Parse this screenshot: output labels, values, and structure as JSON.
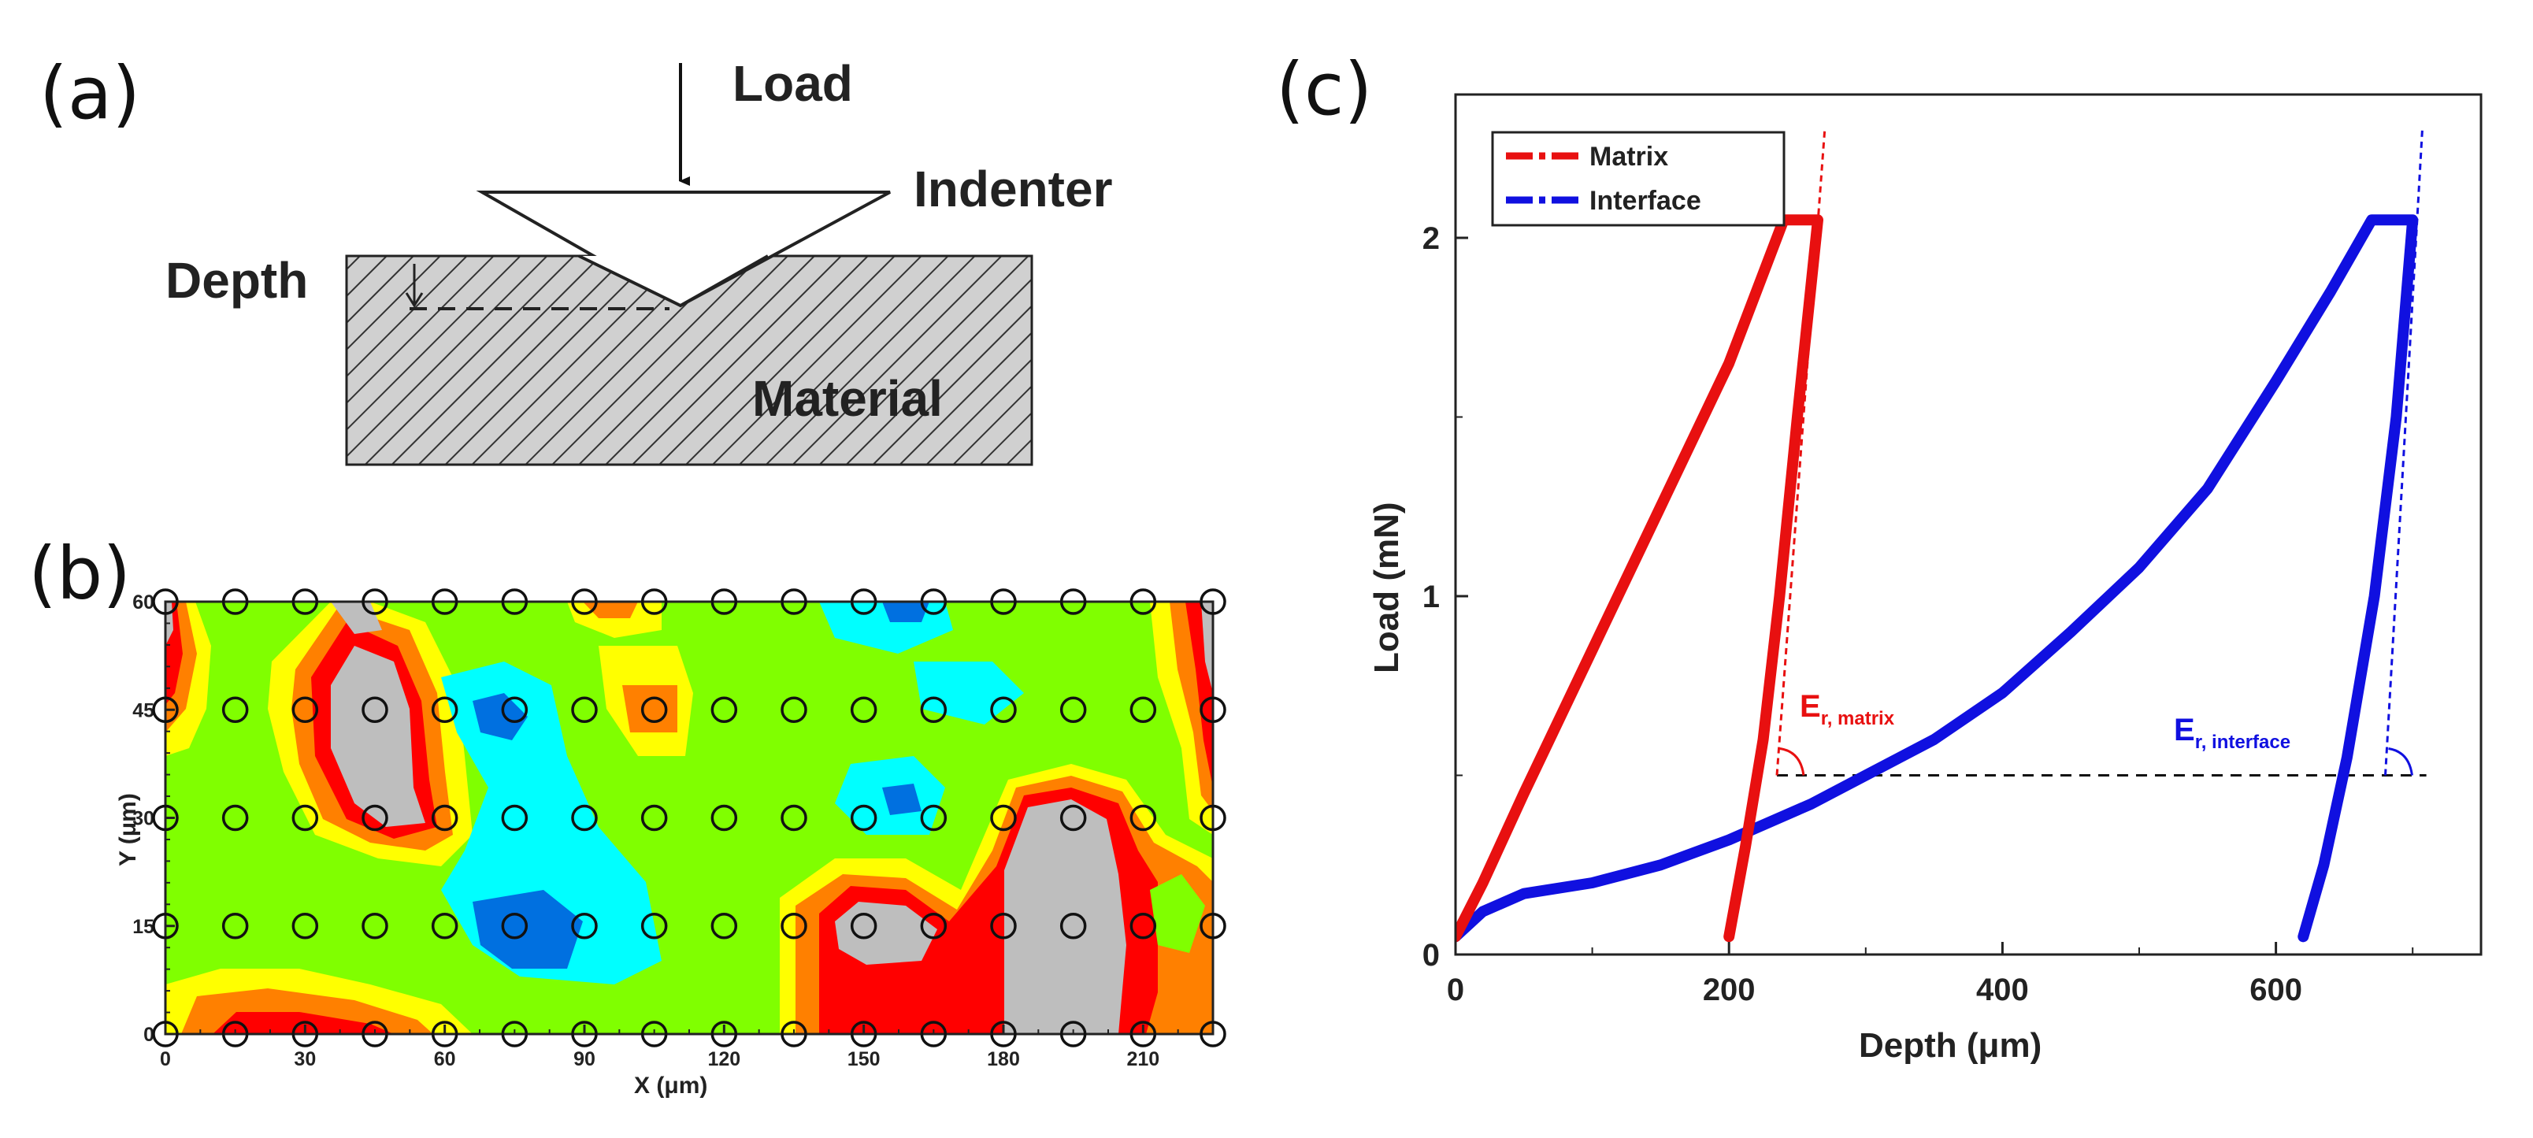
{
  "panels": {
    "a": "(a)",
    "b": "(b)",
    "c": "(c)"
  },
  "diagram": {
    "load": "Load",
    "indenter": "Indenter",
    "depth": "Depth",
    "material": "Material"
  },
  "chart_data": [
    {
      "type": "heatmap",
      "panel": "b",
      "xlabel": "X (μm)",
      "ylabel": "Y (μm)",
      "xlim": [
        0,
        225
      ],
      "ylim": [
        0,
        60
      ],
      "xticks": [
        "0",
        "30",
        "60",
        "90",
        "120",
        "150",
        "180",
        "210"
      ],
      "yticks": [
        "0",
        "15",
        "30",
        "45",
        "60"
      ],
      "grid_x": [
        0,
        15,
        30,
        45,
        60,
        75,
        90,
        105,
        120,
        135,
        150,
        165,
        180,
        195,
        210,
        225
      ],
      "grid_y": [
        0,
        15,
        30,
        45,
        60
      ],
      "colors": {
        "gray": "#bebebe",
        "red": "#ff0000",
        "orange": "#ff8000",
        "yellow": "#ffff00",
        "green": "#80ff00",
        "cyan": "#00ffff",
        "blue": "#0070e0"
      }
    },
    {
      "type": "line",
      "panel": "c",
      "xlabel": "Depth (μm)",
      "ylabel": "Load (mN)",
      "xlim": [
        0,
        750
      ],
      "ylim": [
        0,
        2.4
      ],
      "xticks": [
        {
          "v": 0,
          "t": "0"
        },
        {
          "v": 200,
          "t": "200"
        },
        {
          "v": 400,
          "t": "400"
        },
        {
          "v": 600,
          "t": "600"
        }
      ],
      "yticks": [
        {
          "v": 0,
          "t": "0"
        },
        {
          "v": 1,
          "t": "1"
        },
        {
          "v": 2,
          "t": "2"
        }
      ],
      "legend": [
        "Matrix",
        "Interface"
      ],
      "series": [
        {
          "name": "Matrix",
          "color": "#e81010",
          "loading": [
            [
              0,
              0.05
            ],
            [
              20,
              0.2
            ],
            [
              50,
              0.45
            ],
            [
              100,
              0.85
            ],
            [
              150,
              1.25
            ],
            [
              200,
              1.65
            ],
            [
              240,
              2.05
            ]
          ],
          "hold": [
            [
              240,
              2.05
            ],
            [
              265,
              2.05
            ]
          ],
          "unloading": [
            [
              265,
              2.05
            ],
            [
              250,
              1.5
            ],
            [
              237,
              1.0
            ],
            [
              225,
              0.6
            ],
            [
              212,
              0.3
            ],
            [
              200,
              0.05
            ]
          ],
          "tangent": [
            [
              235,
              0.5
            ],
            [
              270,
              2.3
            ]
          ]
        },
        {
          "name": "Interface",
          "color": "#1010e0",
          "loading": [
            [
              0,
              0.05
            ],
            [
              20,
              0.12
            ],
            [
              50,
              0.17
            ],
            [
              100,
              0.2
            ],
            [
              150,
              0.25
            ],
            [
              200,
              0.32
            ],
            [
              260,
              0.42
            ],
            [
              300,
              0.5
            ],
            [
              350,
              0.6
            ],
            [
              400,
              0.73
            ],
            [
              450,
              0.9
            ],
            [
              500,
              1.08
            ],
            [
              550,
              1.3
            ],
            [
              600,
              1.6
            ],
            [
              640,
              1.85
            ],
            [
              670,
              2.05
            ]
          ],
          "hold": [
            [
              670,
              2.05
            ],
            [
              700,
              2.05
            ]
          ],
          "unloading": [
            [
              700,
              2.05
            ],
            [
              688,
              1.5
            ],
            [
              672,
              1.0
            ],
            [
              652,
              0.55
            ],
            [
              635,
              0.25
            ],
            [
              620,
              0.05
            ]
          ],
          "tangent": [
            [
              680,
              0.5
            ],
            [
              707,
              2.3
            ]
          ]
        }
      ],
      "reference_line": {
        "y": 0.5,
        "x_from": 235,
        "x_to": 710
      },
      "annotations": [
        {
          "label": "E",
          "sub": "r, matrix",
          "color": "#e81010"
        },
        {
          "label": "E",
          "sub": "r, interface",
          "color": "#1010e0"
        }
      ]
    }
  ]
}
